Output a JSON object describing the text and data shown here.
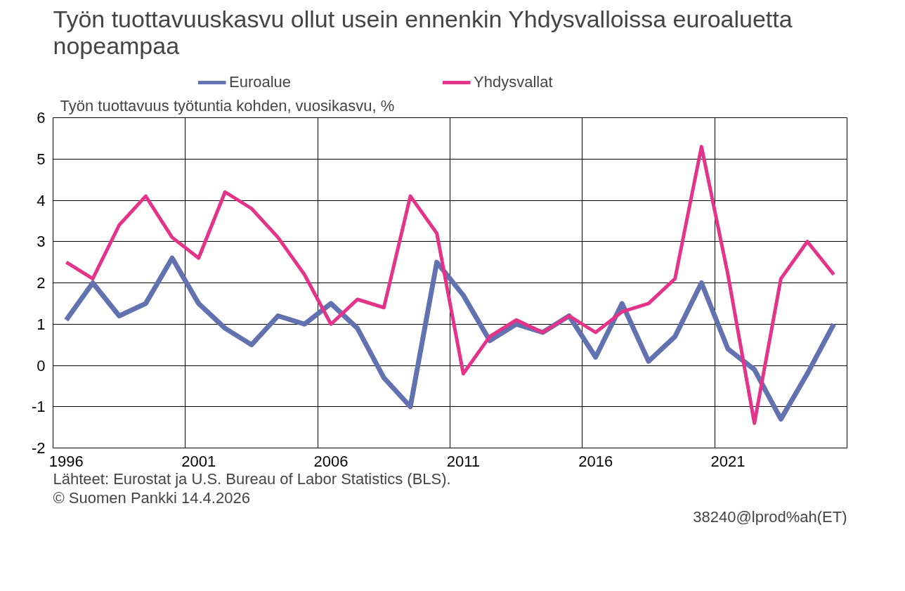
{
  "chart_data": {
    "type": "line",
    "title": "Työn tuottavuuskasvu ollut usein ennenkin Yhdysvalloissa euroaluetta nopeampaa",
    "ylabel": "Työn tuottavuus työtuntia kohden, vuosikasvu, %",
    "categories": [
      "1996",
      null,
      null,
      null,
      null,
      "2001",
      null,
      null,
      null,
      null,
      "2006",
      null,
      null,
      null,
      null,
      "2011",
      null,
      null,
      null,
      null,
      "2016",
      null,
      null,
      null,
      null,
      "2021",
      null,
      null,
      null,
      null
    ],
    "series": [
      {
        "name": "Euroalue",
        "color": "#6272b0",
        "values": [
          1.1,
          2.0,
          1.2,
          1.5,
          2.6,
          1.5,
          0.9,
          0.5,
          1.2,
          1.0,
          1.5,
          0.9,
          -0.3,
          -1.0,
          2.5,
          1.7,
          0.6,
          1.0,
          0.8,
          1.2,
          0.2,
          1.5,
          0.1,
          0.7,
          2.0,
          0.4,
          -0.1,
          -1.3,
          -0.2,
          1.0
        ]
      },
      {
        "name": "Yhdysvallat",
        "color": "#e6338a",
        "values": [
          2.5,
          2.1,
          3.4,
          4.1,
          3.1,
          2.6,
          4.2,
          3.8,
          3.1,
          2.2,
          1.0,
          1.6,
          1.4,
          4.1,
          3.2,
          -0.2,
          0.7,
          1.1,
          0.8,
          1.2,
          0.8,
          1.3,
          1.5,
          2.1,
          5.3,
          2.2,
          -1.4,
          2.1,
          3.0,
          2.2
        ]
      }
    ],
    "ylim": [
      -2,
      6
    ],
    "yticks": [
      -2,
      -1,
      0,
      1,
      2,
      3,
      4,
      5,
      6
    ],
    "grid": true,
    "legend": "top",
    "marker": "none",
    "line_style": "solid",
    "annotations": [
      "Lähteet: Eurostat ja U.S. Bureau of Labor Statistics (BLS).",
      "© Suomen Pankki 14.4.2026",
      "38240@lprod%ah(ET)"
    ]
  }
}
